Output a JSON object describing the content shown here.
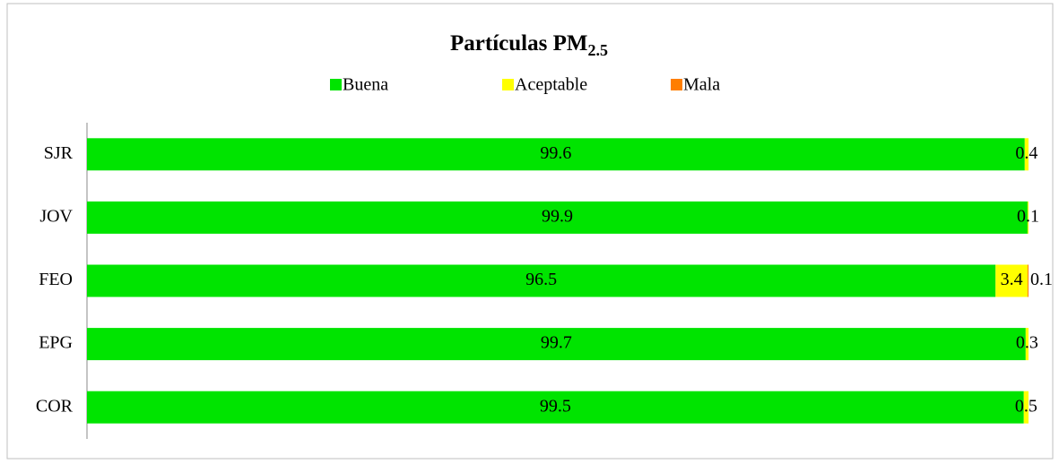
{
  "chart_data": {
    "type": "stacked-bar-horizontal",
    "title": "Partículas PM",
    "title_subscript": "2.5",
    "categories": [
      "SJR",
      "JOV",
      "FEO",
      "EPG",
      "COR"
    ],
    "series": [
      {
        "name": "Buena",
        "color": "#00e400",
        "values": [
          99.6,
          99.9,
          96.5,
          99.7,
          99.5
        ]
      },
      {
        "name": "Aceptable",
        "color": "#ffff00",
        "values": [
          0.4,
          0.1,
          3.4,
          0.3,
          0.5
        ]
      },
      {
        "name": "Mala",
        "color": "#ff7e00",
        "values": [
          null,
          null,
          0.1,
          null,
          null
        ]
      }
    ],
    "xlim": [
      0,
      100
    ],
    "legend": "top"
  }
}
